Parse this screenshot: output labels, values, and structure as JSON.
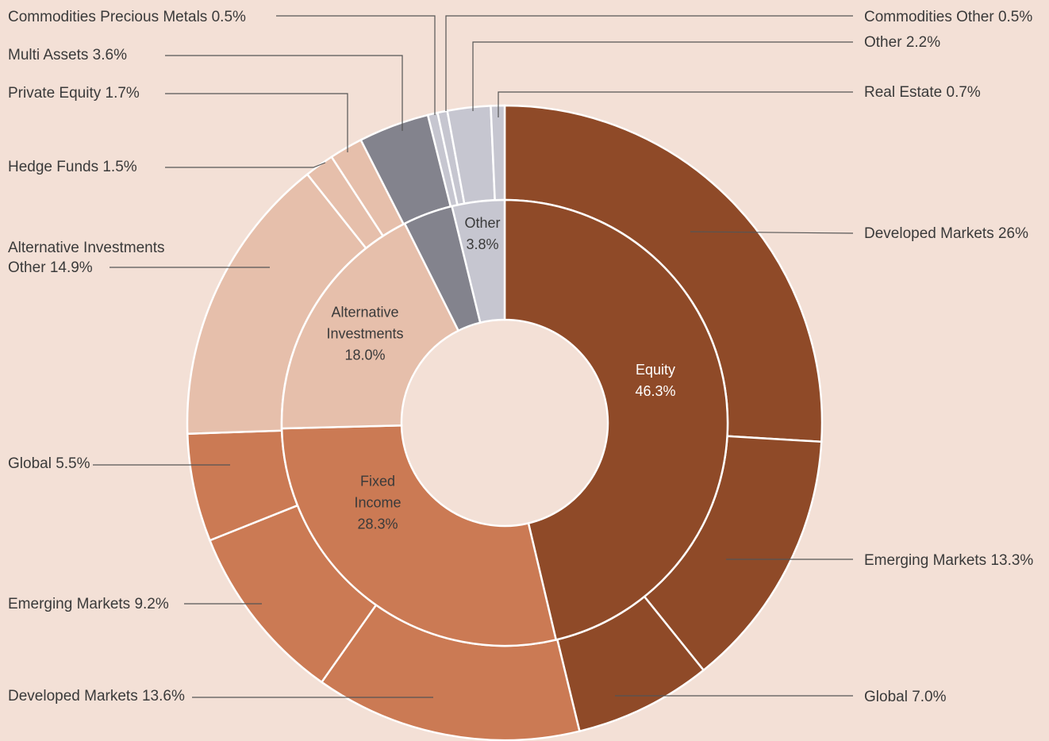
{
  "chart_data": {
    "type": "sunburst",
    "inner": {
      "categories": [
        "Equity",
        "Fixed Income",
        "Alternative Investments",
        null,
        "Other"
      ],
      "values": [
        46.3,
        28.3,
        18.0,
        3.6,
        3.8
      ],
      "value_labels": [
        "46.3%",
        "28.3%",
        "18.0%",
        null,
        "3.8%"
      ],
      "colors": [
        "#8f4a28",
        "#cb7a54",
        "#e6bfab",
        "#83838d",
        "#c6c6d0"
      ]
    },
    "outer": {
      "categories": [
        "Developed Markets",
        "Emerging Markets",
        "Global",
        "Developed Markets",
        "Emerging Markets",
        "Global",
        "Alternative Investments Other",
        "Hedge Funds",
        "Private Equity",
        "Multi Assets",
        "Commodities Precious Metals",
        "Commodities Other",
        "Other",
        "Real Estate"
      ],
      "values": [
        26,
        13.3,
        7.0,
        13.6,
        9.2,
        5.5,
        14.9,
        1.5,
        1.7,
        3.6,
        0.5,
        0.5,
        2.2,
        0.7
      ],
      "value_labels": [
        "26%",
        "13.3%",
        "7.0%",
        "13.6%",
        "9.2%",
        "5.5%",
        "14.9%",
        "1.5%",
        "1.7%",
        "3.6%",
        "0.5%",
        "0.5%",
        "2.2%",
        "0.7%"
      ],
      "colors": [
        "#8f4a28",
        "#8f4a28",
        "#8f4a28",
        "#cb7a54",
        "#cb7a54",
        "#cb7a54",
        "#e6bfab",
        "#e6bfab",
        "#e6bfab",
        "#83838d",
        "#c6c6d0",
        "#c6c6d0",
        "#c6c6d0",
        "#c6c6d0"
      ]
    }
  }
}
